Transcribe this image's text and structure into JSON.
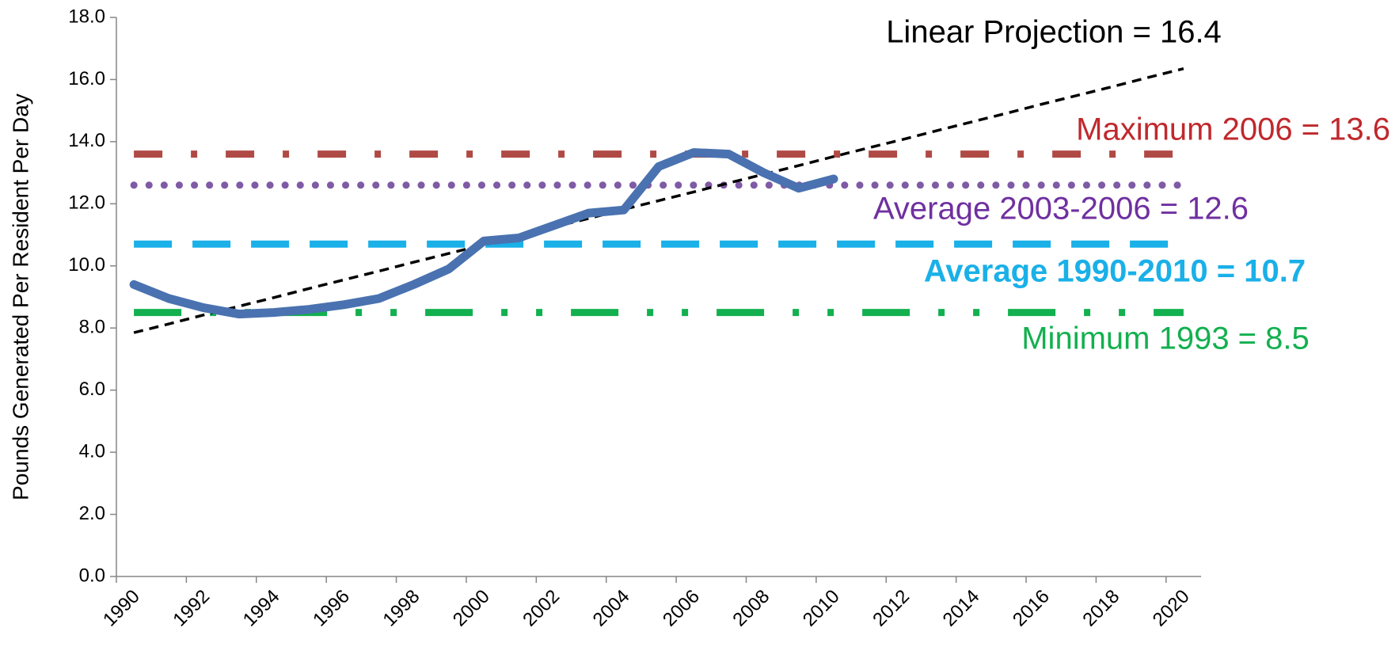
{
  "chart_data": {
    "type": "line",
    "y_label": "Pounds Generated Per Resident Per Day",
    "categories": [
      "1990",
      null,
      "1992",
      null,
      "1994",
      null,
      "1996",
      null,
      "1998",
      null,
      "2000",
      null,
      "2002",
      null,
      "2004",
      null,
      "2006",
      null,
      "2008",
      null,
      "2010",
      null,
      "2012",
      null,
      "2014",
      null,
      "2016",
      null,
      "2018",
      null,
      "2020"
    ],
    "ylim": [
      0,
      18
    ],
    "yticks": [
      {
        "value": 0,
        "label": "0.0"
      },
      {
        "value": 2,
        "label": "2.0"
      },
      {
        "value": 4,
        "label": "4.0"
      },
      {
        "value": 6,
        "label": "6.0"
      },
      {
        "value": 8,
        "label": "8.0"
      },
      {
        "value": 10,
        "label": "10.0"
      },
      {
        "value": 12,
        "label": "12.0"
      },
      {
        "value": 14,
        "label": "14.0"
      },
      {
        "value": 16,
        "label": "16.0"
      },
      {
        "value": 18,
        "label": "18.0"
      }
    ],
    "series": [
      {
        "color": "#b04a45",
        "style": "dash-dot",
        "values": [
          13.6,
          13.6,
          13.6,
          13.6,
          13.6,
          13.6,
          13.6,
          13.6,
          13.6,
          13.6,
          13.6,
          13.6,
          13.6,
          13.6,
          13.6,
          13.6,
          13.6,
          13.6,
          13.6,
          13.6,
          13.6,
          13.6,
          13.6,
          13.6,
          13.6,
          13.6,
          13.6,
          13.6,
          13.6,
          13.6,
          13.6
        ]
      },
      {
        "color": "#7f5aa5",
        "style": "dotted",
        "values": [
          12.6,
          12.6,
          12.6,
          12.6,
          12.6,
          12.6,
          12.6,
          12.6,
          12.6,
          12.6,
          12.6,
          12.6,
          12.6,
          12.6,
          12.6,
          12.6,
          12.6,
          12.6,
          12.6,
          12.6,
          12.6,
          12.6,
          12.6,
          12.6,
          12.6,
          12.6,
          12.6,
          12.6,
          12.6,
          12.6,
          12.6
        ]
      },
      {
        "color": "#1ab0e8",
        "style": "dashed",
        "values": [
          10.7,
          10.7,
          10.7,
          10.7,
          10.7,
          10.7,
          10.7,
          10.7,
          10.7,
          10.7,
          10.7,
          10.7,
          10.7,
          10.7,
          10.7,
          10.7,
          10.7,
          10.7,
          10.7,
          10.7,
          10.7,
          10.7,
          10.7,
          10.7,
          10.7,
          10.7,
          10.7,
          10.7,
          10.7,
          10.7,
          10.7
        ]
      },
      {
        "color": "#13b04f",
        "style": "dash-dot-dot",
        "values": [
          8.5,
          8.5,
          8.5,
          8.5,
          8.5,
          8.5,
          8.5,
          8.5,
          8.5,
          8.5,
          8.5,
          8.5,
          8.5,
          8.5,
          8.5,
          8.5,
          8.5,
          8.5,
          8.5,
          8.5,
          8.5,
          8.5,
          8.5,
          8.5,
          8.5,
          8.5,
          8.5,
          8.5,
          8.5,
          8.5,
          8.5
        ]
      },
      {
        "color": "#000000",
        "style": "trend",
        "values": [
          7.85,
          8.13,
          8.42,
          8.7,
          8.98,
          9.27,
          9.55,
          9.83,
          10.12,
          10.4,
          10.68,
          10.97,
          11.25,
          11.53,
          11.82,
          12.1,
          12.38,
          12.67,
          12.95,
          13.23,
          13.52,
          13.8,
          14.08,
          14.37,
          14.65,
          14.93,
          15.22,
          15.5,
          15.78,
          16.07,
          16.35
        ]
      },
      {
        "color": "#4a72b0",
        "style": "solid",
        "values": [
          9.4,
          8.95,
          8.65,
          8.45,
          8.5,
          8.6,
          8.75,
          8.95,
          9.4,
          9.9,
          10.8,
          10.9,
          11.3,
          11.7,
          11.8,
          13.2,
          13.65,
          13.6,
          13.0,
          12.5,
          12.8,
          null,
          null,
          null,
          null,
          null,
          null,
          null,
          null,
          null,
          null
        ]
      }
    ],
    "annotations": [
      {
        "text": "Linear Projection = 16.4",
        "color": "#000000"
      },
      {
        "text": "Maximum 2006 = 13.6",
        "color": "#c0282d"
      },
      {
        "text": "Average 2003-2006 = 12.6",
        "color": "#7030a0"
      },
      {
        "text": "Average 1990-2010 = 10.7",
        "color": "#1ab0e8",
        "bold": true
      },
      {
        "text": "Minimum 1993 = 8.5",
        "color": "#13b04f"
      }
    ]
  }
}
